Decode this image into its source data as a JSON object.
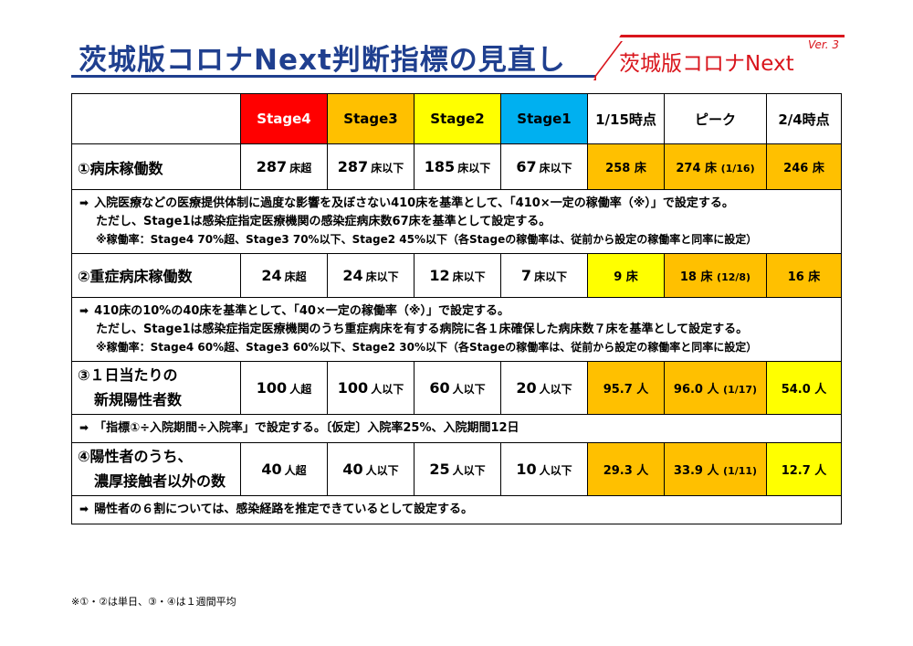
{
  "title": "茨城版コロナNext判断指標の見直し",
  "logo": {
    "text_pre": "茨城版コロナ",
    "text_next": "Next",
    "version": "Ver. 3"
  },
  "colors": {
    "stage4": "#ff0000",
    "stage3": "#ffc000",
    "stage2": "#ffff00",
    "stage1": "#00b0f0",
    "title": "#1f3f8f",
    "logo": "#d9151c"
  },
  "table": {
    "headers": [
      "Stage4",
      "Stage3",
      "Stage2",
      "Stage1",
      "1/15時点",
      "ピーク",
      "2/4時点"
    ],
    "rows": [
      {
        "label": "①病床稼働数",
        "stages": [
          {
            "v": "287",
            "u": "床超"
          },
          {
            "v": "287",
            "u": "床以下"
          },
          {
            "v": "185",
            "u": "床以下"
          },
          {
            "v": "67",
            "u": "床以下"
          }
        ],
        "obs": [
          {
            "v": "258 床",
            "sub": ""
          },
          {
            "v": "274 床",
            "sub": "(1/16)"
          },
          {
            "v": "246 床",
            "sub": ""
          }
        ],
        "notes": [
          "入院医療などの医療提供体制に過度な影響を及ぼさない410床を基準として、「410×一定の稼働率（※）」で設定する。",
          "ただし、Stage1は感染症指定医療機関の感染症病床数67床を基準として設定する。",
          "※稼働率：Stage4 70%超、Stage3 70%以下、Stage2 45%以下（各Stageの稼働率は、従前から設定の稼働率と同率に設定）"
        ]
      },
      {
        "label": "②重症病床稼働数",
        "stages": [
          {
            "v": "24",
            "u": "床超"
          },
          {
            "v": "24",
            "u": "床以下"
          },
          {
            "v": "12",
            "u": "床以下"
          },
          {
            "v": "7",
            "u": "床以下"
          }
        ],
        "obs": [
          {
            "v": "9 床",
            "sub": ""
          },
          {
            "v": "18 床",
            "sub": "(12/8)"
          },
          {
            "v": "16 床",
            "sub": ""
          }
        ],
        "notes": [
          "410床の10%の40床を基準として、「40×一定の稼働率（※）」で設定する。",
          "ただし、Stage1は感染症指定医療機関のうち重症病床を有する病院に各１床確保した病床数７床を基準として設定する。",
          "※稼働率：Stage4 60%超、Stage3 60%以下、Stage2 30%以下（各Stageの稼働率は、従前から設定の稼働率と同率に設定）"
        ]
      },
      {
        "label1": "③１日当たりの",
        "label2": "新規陽性者数",
        "stages": [
          {
            "v": "100",
            "u": "人超"
          },
          {
            "v": "100",
            "u": "人以下"
          },
          {
            "v": "60",
            "u": "人以下"
          },
          {
            "v": "20",
            "u": "人以下"
          }
        ],
        "obs": [
          {
            "v": "95.7 人",
            "sub": ""
          },
          {
            "v": "96.0 人",
            "sub": "(1/17)"
          },
          {
            "v": "54.0 人",
            "sub": ""
          }
        ],
        "notes": [
          "「指標①÷入院期間÷入院率」で設定する。〔仮定〕入院率25%、入院期間12日"
        ]
      },
      {
        "label1": "④陽性者のうち、",
        "label2": "濃厚接触者以外の数",
        "stages": [
          {
            "v": "40",
            "u": "人超"
          },
          {
            "v": "40",
            "u": "人以下"
          },
          {
            "v": "25",
            "u": "人以下"
          },
          {
            "v": "10",
            "u": "人以下"
          }
        ],
        "obs": [
          {
            "v": "29.3 人",
            "sub": ""
          },
          {
            "v": "33.9 人",
            "sub": "(1/11)"
          },
          {
            "v": "12.7 人",
            "sub": ""
          }
        ],
        "notes": [
          "陽性者の６割については、感染経路を推定できているとして設定する。"
        ]
      }
    ]
  },
  "footnote": "※①・②は単日、③・④は１週間平均"
}
